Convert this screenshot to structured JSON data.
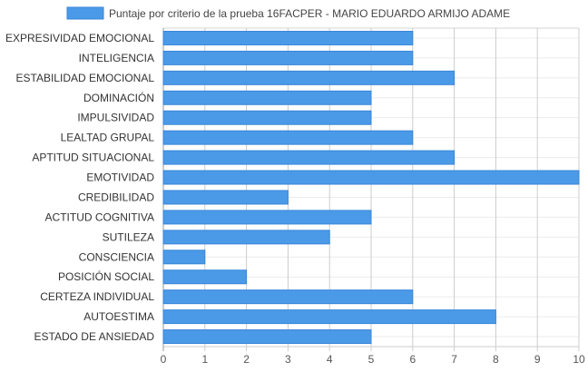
{
  "chart_data": {
    "type": "bar",
    "orientation": "horizontal",
    "categories": [
      "EXPRESIVIDAD EMOCIONAL",
      "INTELIGENCIA",
      "ESTABILIDAD EMOCIONAL",
      "DOMINACIÓN",
      "IMPULSIVIDAD",
      "LEALTAD GRUPAL",
      "APTITUD SITUACIONAL",
      "EMOTIVIDAD",
      "CREDIBILIDAD",
      "ACTITUD COGNITIVA",
      "SUTILEZA",
      "CONSCIENCIA",
      "POSICIÓN SOCIAL",
      "CERTEZA INDIVIDUAL",
      "AUTOESTIMA",
      "ESTADO DE ANSIEDAD"
    ],
    "series": [
      {
        "name": "Puntaje por criterio de la prueba 16FACPER - MARIO EDUARDO ARMIJO ADAME",
        "values": [
          6,
          6,
          7,
          5,
          5,
          6,
          7,
          10,
          3,
          5,
          4,
          1,
          2,
          6,
          8,
          5
        ],
        "color": "#4a9ae8",
        "border_color": "#3a86d8"
      }
    ],
    "xlim": [
      0,
      10
    ],
    "x_ticks": [
      "0",
      "1",
      "2",
      "3",
      "4",
      "5",
      "6",
      "7",
      "8",
      "9",
      "10"
    ],
    "grid": true,
    "legend_position": "top"
  }
}
